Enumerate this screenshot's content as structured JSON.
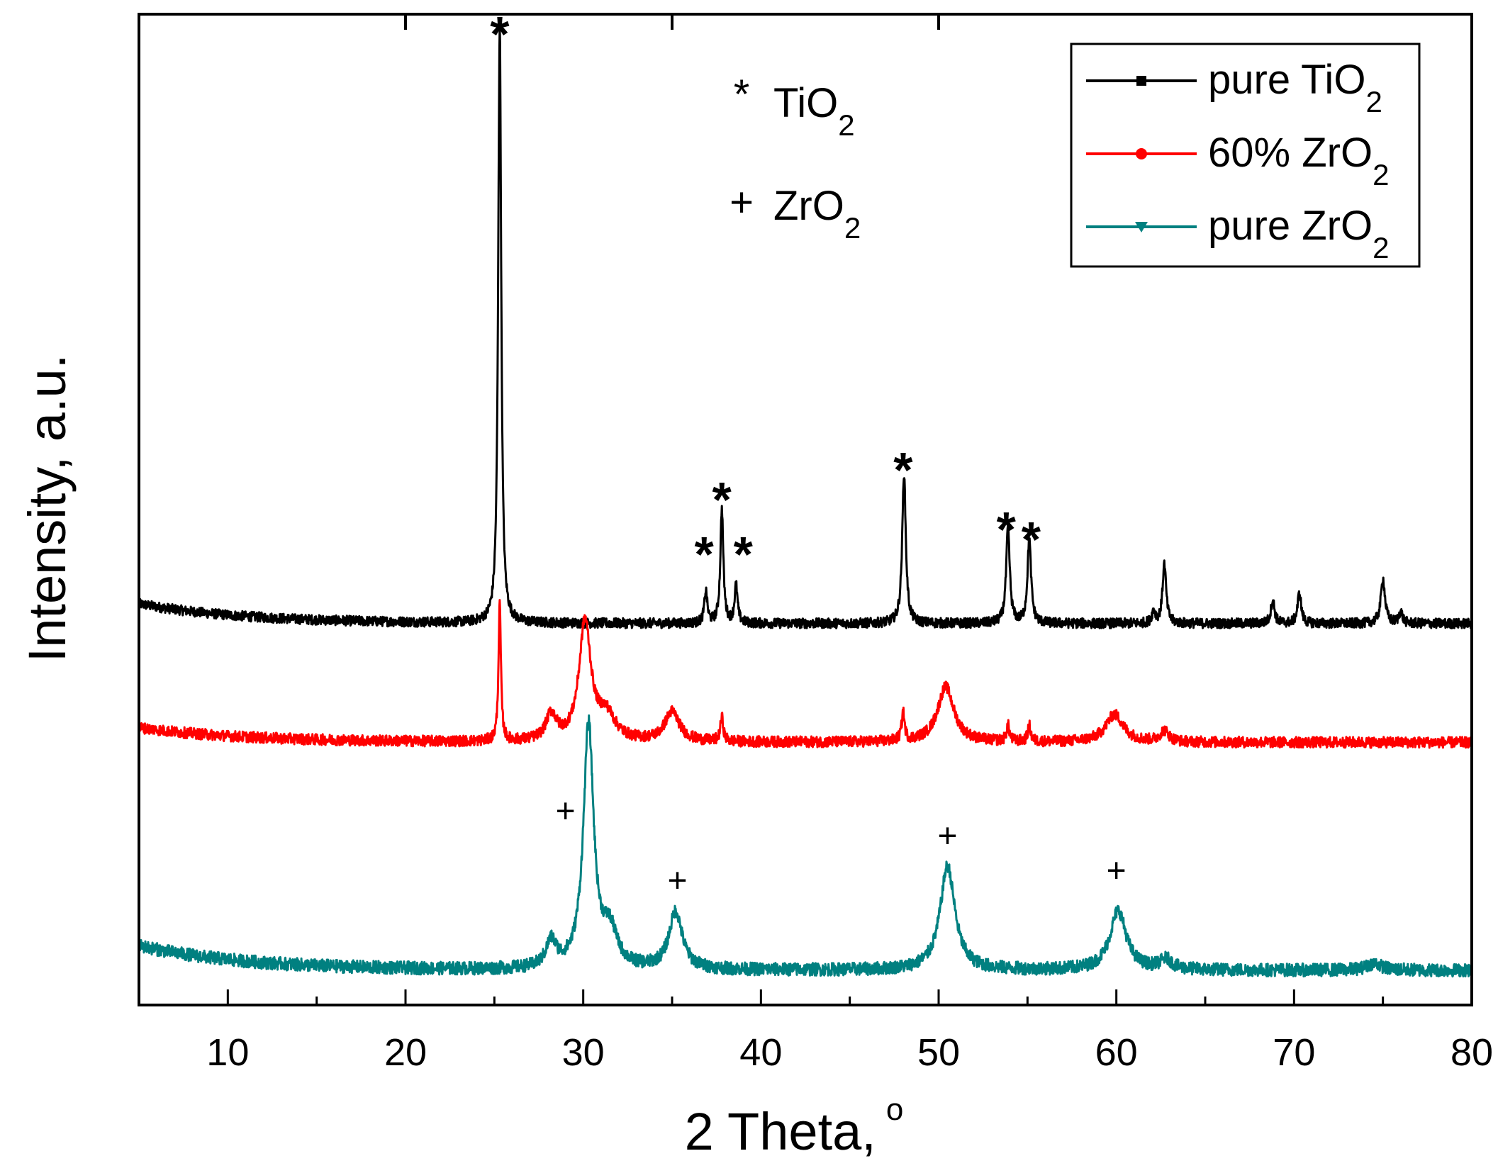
{
  "chart_data": {
    "type": "line",
    "xlabel": "2 Theta,",
    "xlabel_degree": "o",
    "ylabel": "Intensity, a.u.",
    "xlim": [
      5,
      80
    ],
    "ylim": [
      0,
      100
    ],
    "x_ticks": [
      "10",
      "20",
      "30",
      "40",
      "50",
      "60",
      "70",
      "80"
    ],
    "x_tick_values": [
      10,
      20,
      30,
      40,
      50,
      60,
      70,
      80
    ],
    "top_tick_values": [
      20,
      35,
      50
    ],
    "y_ticks_shown": false,
    "legend": {
      "placement": "top-right",
      "entries": [
        {
          "pre": "pure TiO",
          "sub": "2",
          "color": "#000000",
          "marker": "square"
        },
        {
          "pre": "60% ZrO",
          "sub": "2",
          "color": "#ff0000",
          "marker": "circle"
        },
        {
          "pre": "pure ZrO",
          "sub": "2",
          "color": "#008080",
          "marker": "triangle-down"
        }
      ]
    },
    "phase_key": [
      {
        "symbol": "*",
        "pre": "TiO",
        "sub": "2"
      },
      {
        "symbol": "+",
        "pre": "ZrO",
        "sub": "2"
      }
    ],
    "series": [
      {
        "name": "pure TiO2",
        "color": "#000000",
        "baseline": 38.5,
        "baseline_start": 40.5,
        "noise": 0.5,
        "peaks": [
          {
            "x": 25.3,
            "h": 60.5,
            "w": 0.1
          },
          {
            "x": 36.9,
            "h": 3.2,
            "w": 0.1
          },
          {
            "x": 37.8,
            "h": 11.6,
            "w": 0.1
          },
          {
            "x": 38.6,
            "h": 3.8,
            "w": 0.1
          },
          {
            "x": 48.05,
            "h": 15.2,
            "w": 0.12
          },
          {
            "x": 53.9,
            "h": 9.6,
            "w": 0.12
          },
          {
            "x": 55.1,
            "h": 8.5,
            "w": 0.12
          },
          {
            "x": 62.1,
            "h": 1.2,
            "w": 0.12
          },
          {
            "x": 62.7,
            "h": 6.0,
            "w": 0.12
          },
          {
            "x": 68.8,
            "h": 2.4,
            "w": 0.12
          },
          {
            "x": 70.3,
            "h": 3.1,
            "w": 0.12
          },
          {
            "x": 75.0,
            "h": 4.5,
            "w": 0.14
          },
          {
            "x": 76.0,
            "h": 1.2,
            "w": 0.12
          }
        ]
      },
      {
        "name": "60% ZrO2",
        "color": "#ff0000",
        "baseline": 26.5,
        "baseline_start": 28.0,
        "noise": 0.55,
        "peaks": [
          {
            "x": 25.3,
            "h": 13.8,
            "w": 0.08
          },
          {
            "x": 28.2,
            "h": 2.6,
            "w": 0.35
          },
          {
            "x": 30.1,
            "h": 12.0,
            "w": 0.4
          },
          {
            "x": 31.3,
            "h": 2.5,
            "w": 0.6
          },
          {
            "x": 35.0,
            "h": 3.0,
            "w": 0.5
          },
          {
            "x": 37.8,
            "h": 2.4,
            "w": 0.1
          },
          {
            "x": 48.0,
            "h": 2.8,
            "w": 0.1
          },
          {
            "x": 50.4,
            "h": 5.6,
            "w": 0.55
          },
          {
            "x": 53.9,
            "h": 1.6,
            "w": 0.1
          },
          {
            "x": 55.1,
            "h": 1.6,
            "w": 0.1
          },
          {
            "x": 59.9,
            "h": 2.8,
            "w": 0.6
          },
          {
            "x": 62.7,
            "h": 1.1,
            "w": 0.3
          }
        ]
      },
      {
        "name": "pure ZrO2",
        "color": "#008080",
        "baseline": 3.5,
        "baseline_start": 6.0,
        "noise": 0.65,
        "peaks": [
          {
            "x": 28.2,
            "h": 2.6,
            "w": 0.35
          },
          {
            "x": 30.3,
            "h": 24.5,
            "w": 0.35
          },
          {
            "x": 31.5,
            "h": 3.5,
            "w": 0.5
          },
          {
            "x": 35.2,
            "h": 5.8,
            "w": 0.45
          },
          {
            "x": 50.5,
            "h": 10.5,
            "w": 0.5
          },
          {
            "x": 60.1,
            "h": 6.0,
            "w": 0.55
          },
          {
            "x": 62.8,
            "h": 1.0,
            "w": 0.4
          },
          {
            "x": 74.5,
            "h": 0.7,
            "w": 0.5
          }
        ]
      }
    ],
    "annotations": [
      {
        "text": "*",
        "x": 25.3,
        "y": 99,
        "size": "large"
      },
      {
        "text": "*",
        "x": 37.8,
        "y": 52,
        "size": "large"
      },
      {
        "text": "*",
        "x": 36.8,
        "y": 46.5,
        "size": "large"
      },
      {
        "text": "*",
        "x": 39.0,
        "y": 46.5,
        "size": "large"
      },
      {
        "text": "*",
        "x": 48.0,
        "y": 55,
        "size": "large"
      },
      {
        "text": "*",
        "x": 53.8,
        "y": 49,
        "size": "large"
      },
      {
        "text": "*",
        "x": 55.2,
        "y": 48,
        "size": "large"
      },
      {
        "text": "+",
        "x": 29.0,
        "y": 20,
        "size": "small"
      },
      {
        "text": "+",
        "x": 35.3,
        "y": 13,
        "size": "small"
      },
      {
        "text": "+",
        "x": 50.5,
        "y": 17.5,
        "size": "small"
      },
      {
        "text": "+",
        "x": 60.0,
        "y": 14,
        "size": "small"
      }
    ]
  }
}
